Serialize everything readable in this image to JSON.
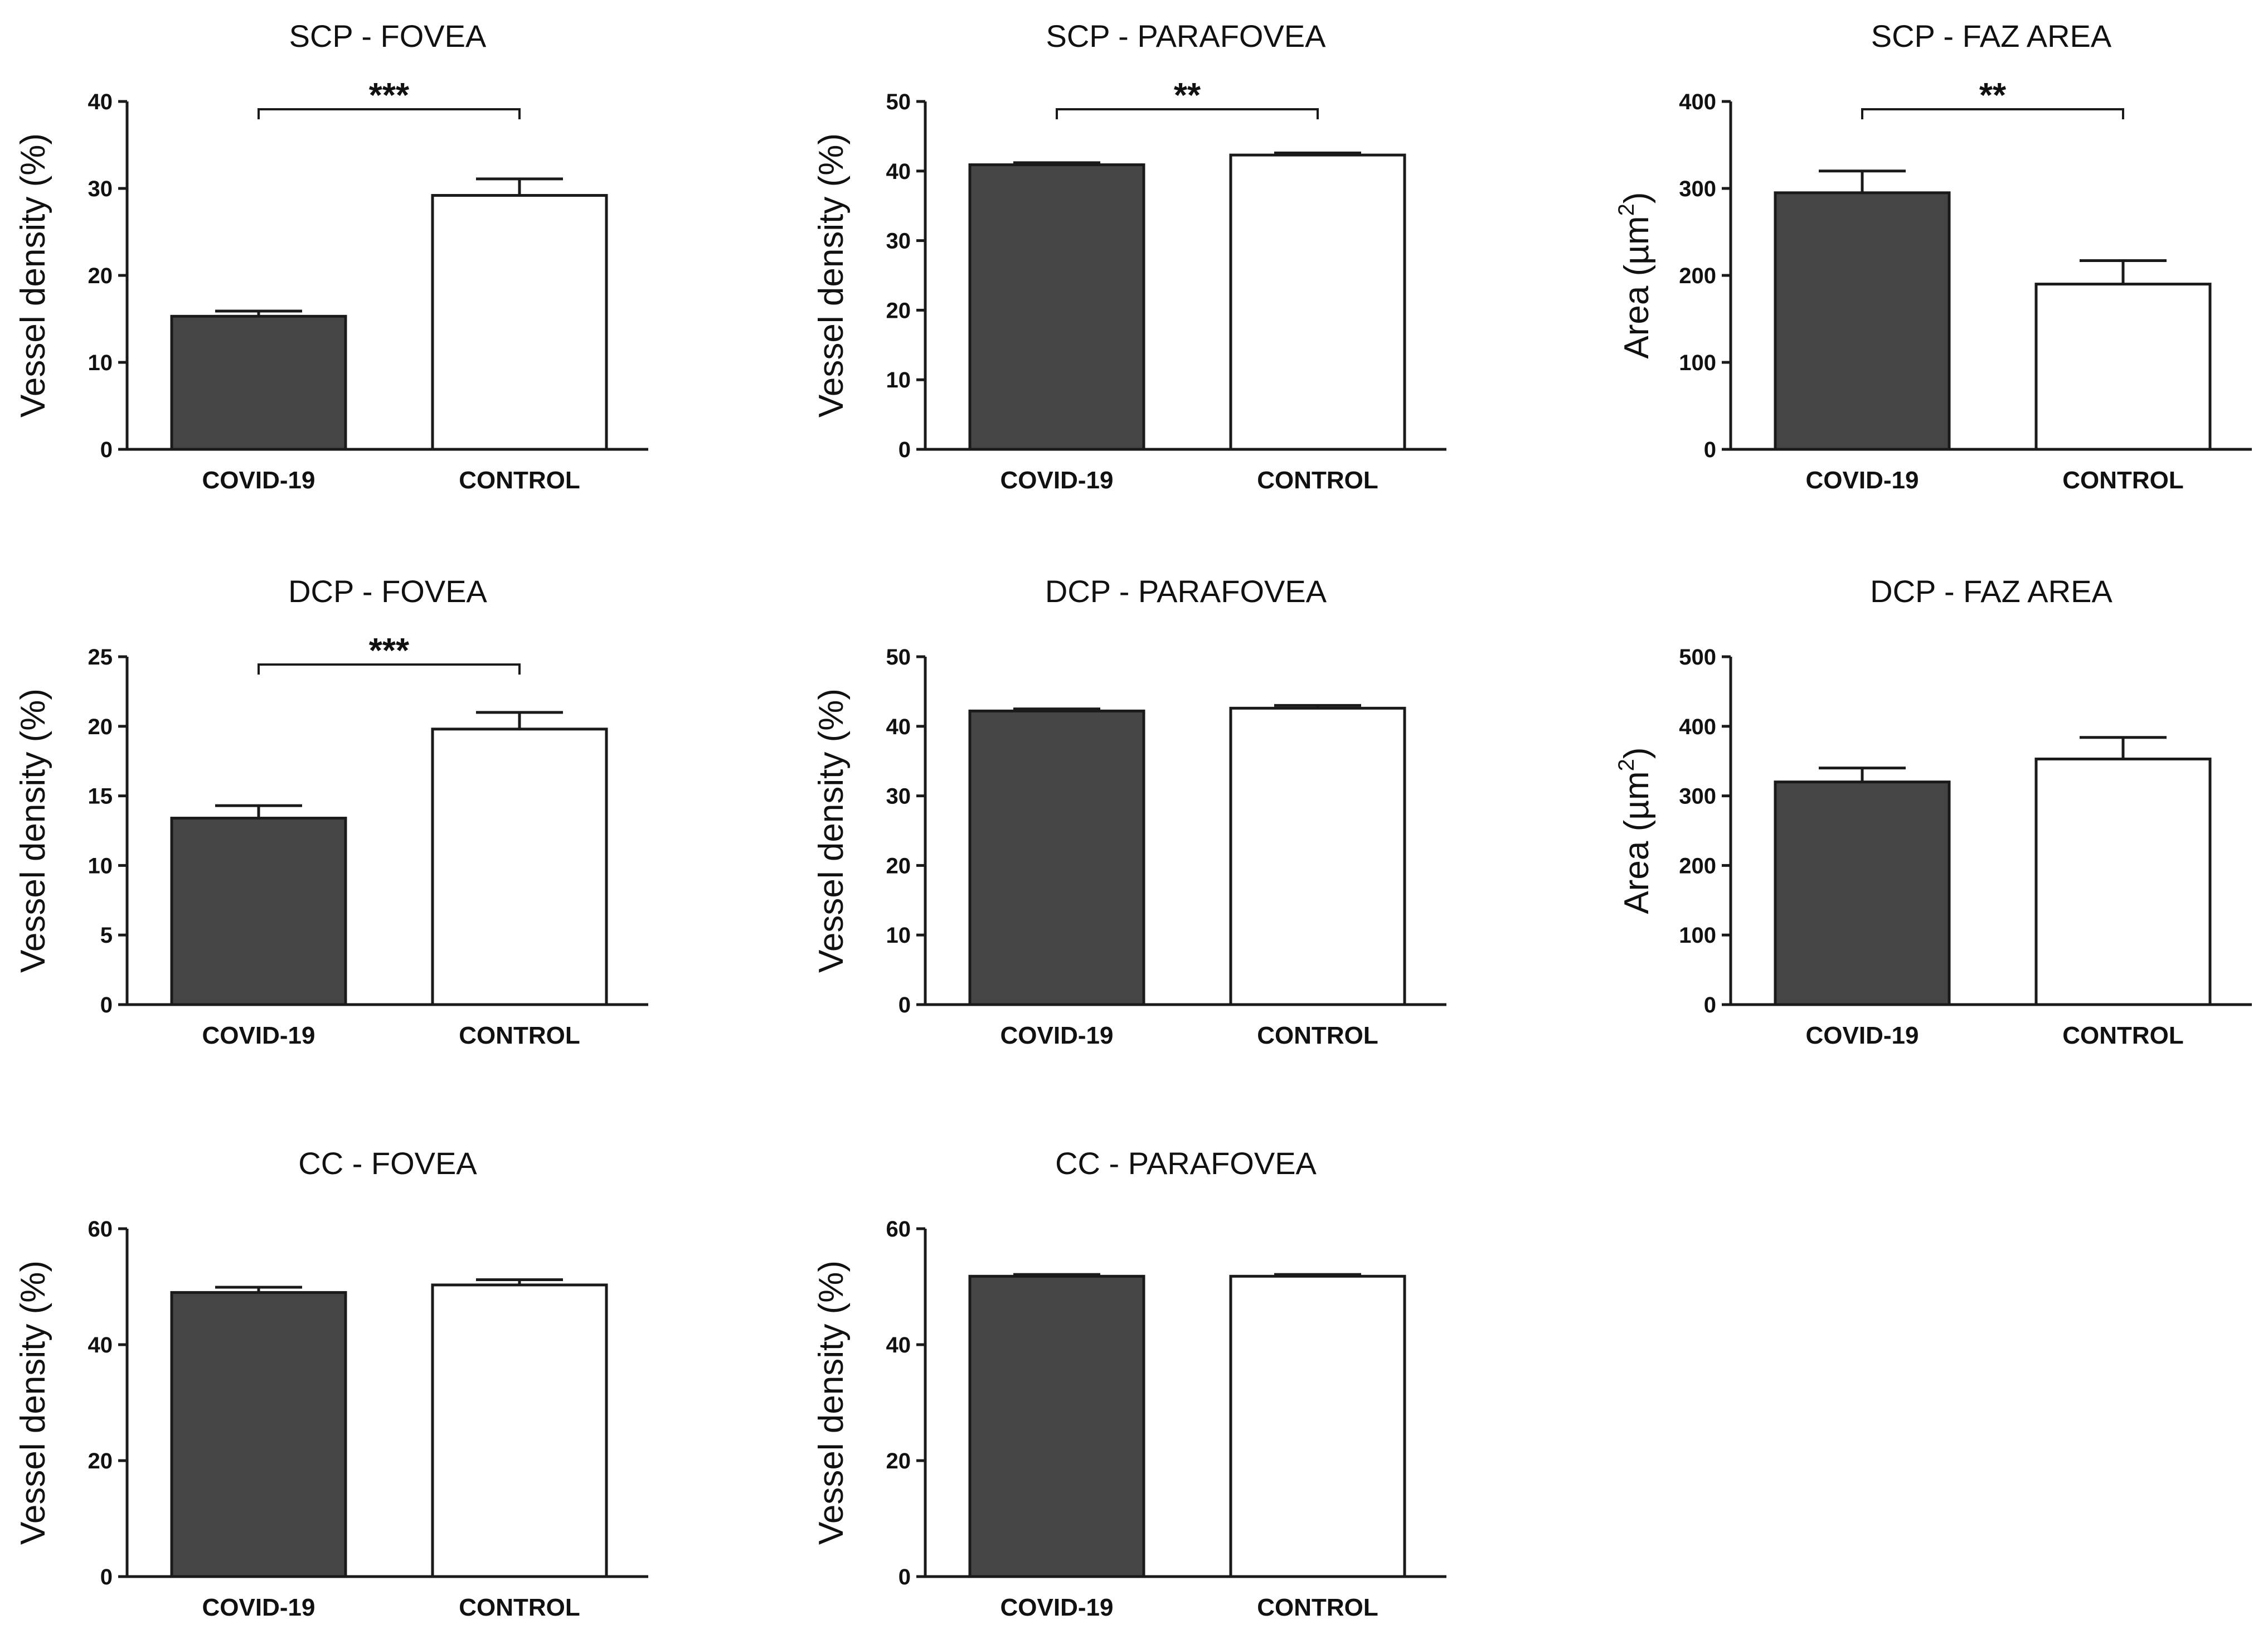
{
  "colors": {
    "covid_fill": "#454545",
    "control_fill": "#ffffff",
    "stroke": "#1a1a1a"
  },
  "chart_data": [
    {
      "type": "bar",
      "title": "SCP - FOVEA",
      "categories": [
        "COVID-19",
        "CONTROL"
      ],
      "values": [
        15.3,
        29.2
      ],
      "errors": [
        0.6,
        1.9
      ],
      "ylabel": "Vessel density  (%)",
      "ylim": [
        0,
        40
      ],
      "yticks": [
        0,
        10,
        20,
        30,
        40
      ],
      "significance": "***"
    },
    {
      "type": "bar",
      "title": "SCP - PARAFOVEA",
      "categories": [
        "COVID-19",
        "CONTROL"
      ],
      "values": [
        40.9,
        42.3
      ],
      "errors": [
        0.3,
        0.3
      ],
      "ylabel": "Vessel density  (%)",
      "ylim": [
        0,
        50
      ],
      "yticks": [
        0,
        10,
        20,
        30,
        40,
        50
      ],
      "significance": "**"
    },
    {
      "type": "bar",
      "title": "SCP - FAZ AREA",
      "categories": [
        "COVID-19",
        "CONTROL"
      ],
      "values": [
        295,
        190
      ],
      "errors": [
        25,
        27
      ],
      "ylabel_main": "Area (µm",
      "ylabel_sup": "2",
      "ylabel_end": ")",
      "ylim": [
        0,
        400
      ],
      "yticks": [
        0,
        100,
        200,
        300,
        400
      ],
      "significance": "**"
    },
    {
      "type": "bar",
      "title": "DCP - FOVEA",
      "categories": [
        "COVID-19",
        "CONTROL"
      ],
      "values": [
        13.4,
        19.8
      ],
      "errors": [
        0.9,
        1.2
      ],
      "ylabel": "Vessel density  (%)",
      "ylim": [
        0,
        25
      ],
      "yticks": [
        0,
        5,
        10,
        15,
        20,
        25
      ],
      "significance": "***"
    },
    {
      "type": "bar",
      "title": "DCP - PARAFOVEA",
      "categories": [
        "COVID-19",
        "CONTROL"
      ],
      "values": [
        42.2,
        42.6
      ],
      "errors": [
        0.3,
        0.4
      ],
      "ylabel": "Vessel density  (%)",
      "ylim": [
        0,
        50
      ],
      "yticks": [
        0,
        10,
        20,
        30,
        40,
        50
      ],
      "significance": ""
    },
    {
      "type": "bar",
      "title": "DCP -  FAZ AREA",
      "categories": [
        "COVID-19",
        "CONTROL"
      ],
      "values": [
        320,
        353
      ],
      "errors": [
        20,
        31
      ],
      "ylabel_main": "Area (µm",
      "ylabel_sup": "2",
      "ylabel_end": ")",
      "ylim": [
        0,
        500
      ],
      "yticks": [
        0,
        100,
        200,
        300,
        400,
        500
      ],
      "significance": ""
    },
    {
      "type": "bar",
      "title": "CC - FOVEA",
      "categories": [
        "COVID-19",
        "CONTROL"
      ],
      "values": [
        49.0,
        50.3
      ],
      "errors": [
        0.9,
        0.9
      ],
      "ylabel": "Vessel density  (%)",
      "ylim": [
        0,
        60
      ],
      "yticks": [
        0,
        20,
        40,
        60
      ],
      "significance": ""
    },
    {
      "type": "bar",
      "title": "CC - PARAFOVEA",
      "categories": [
        "COVID-19",
        "CONTROL"
      ],
      "values": [
        51.8,
        51.8
      ],
      "errors": [
        0.3,
        0.3
      ],
      "ylabel": "Vessel density  (%)",
      "ylim": [
        0,
        60
      ],
      "yticks": [
        0,
        20,
        40,
        60
      ],
      "significance": ""
    }
  ]
}
